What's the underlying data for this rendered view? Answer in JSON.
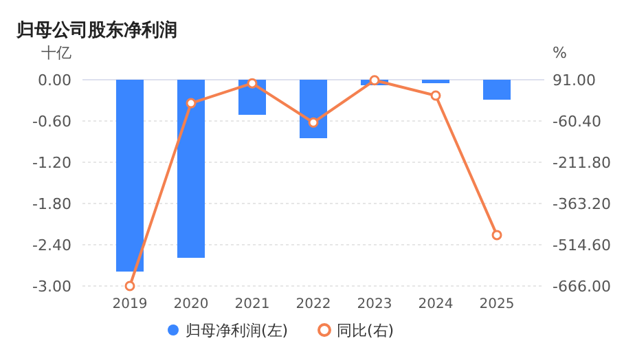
{
  "chart_data": {
    "type": "bar",
    "title": "归母公司股东净利润",
    "ylabel": "十亿",
    "y2label": "%",
    "categories": [
      "2019",
      "2020",
      "2021",
      "2022",
      "2023",
      "2024",
      "2025"
    ],
    "series": [
      {
        "name": "归母净利润(左)",
        "color": "#3a86ff",
        "values": [
          -2.79,
          -2.59,
          -0.51,
          -0.85,
          -0.08,
          -0.05,
          -0.29
        ]
      },
      {
        "name": "同比(右)",
        "type": "line",
        "axis": "y2",
        "color": "#f4804f",
        "marker": "circle",
        "values": [
          -666,
          5,
          78,
          -66,
          89,
          33,
          -479
        ]
      }
    ],
    "ylim": [
      -3,
      0
    ],
    "yticks": [
      {
        "value": 0,
        "label": "0.00"
      },
      {
        "value": -0.6,
        "label": "-0.60"
      },
      {
        "value": -1.2,
        "label": "-1.20"
      },
      {
        "value": -1.8,
        "label": "-1.80"
      },
      {
        "value": -2.4,
        "label": "-2.40"
      },
      {
        "value": -3,
        "label": "-3.00"
      }
    ],
    "y2lim": [
      -666,
      91
    ],
    "y2ticks": [
      {
        "value": 91,
        "label": "91.00"
      },
      {
        "value": -60.4,
        "label": "-60.40"
      },
      {
        "value": -211.8,
        "label": "-211.80"
      },
      {
        "value": -363.2,
        "label": "-363.20"
      },
      {
        "value": -514.6,
        "label": "-514.60"
      },
      {
        "value": -666,
        "label": "-666.00"
      }
    ],
    "grid": "y",
    "legend": "bottom"
  }
}
